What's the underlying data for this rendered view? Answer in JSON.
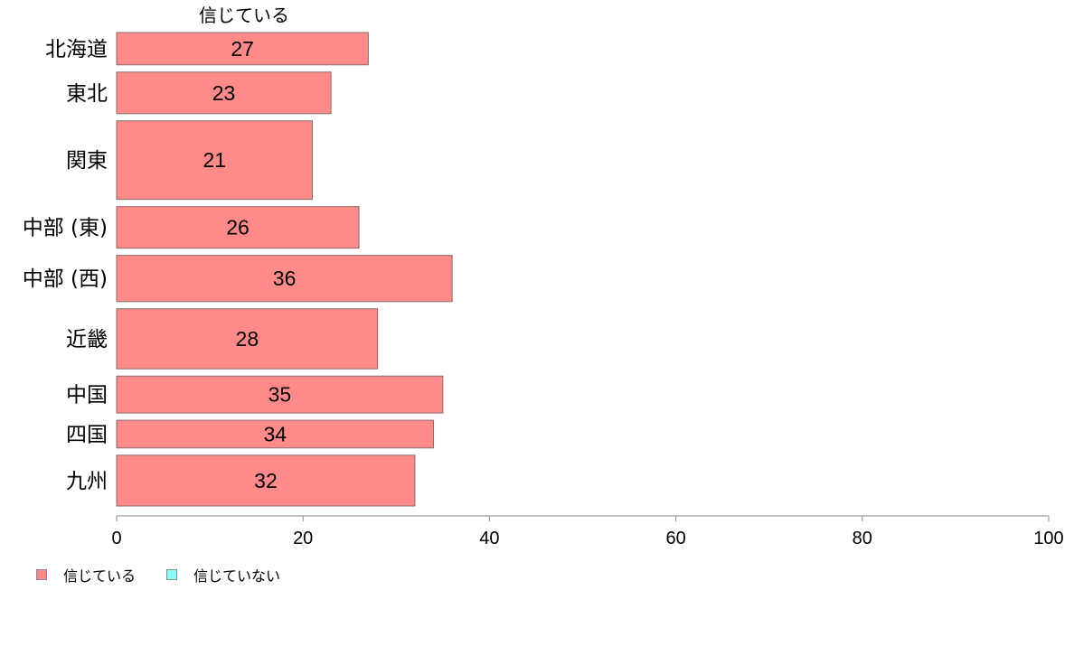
{
  "chart_data": {
    "type": "bar",
    "orientation": "horizontal",
    "panel_title": "信じている",
    "categories": [
      "北海道",
      "東北",
      "関東",
      "中部 (東)",
      "中部 (西)",
      "近畿",
      "中国",
      "四国",
      "九州"
    ],
    "relative_bar_widths": [
      3.5,
      4.5,
      8.5,
      4.5,
      5.0,
      6.5,
      4.0,
      3.0,
      5.5
    ],
    "series": [
      {
        "name": "信じている",
        "color": "#ff8a8a",
        "values": [
          27,
          23,
          21,
          26,
          36,
          28,
          35,
          34,
          32
        ]
      }
    ],
    "xlim": [
      0,
      100
    ],
    "xticks": [
      "0",
      "20",
      "40",
      "60",
      "80",
      "100"
    ],
    "grid": false,
    "legend_position": "bottom-left"
  },
  "legend": [
    {
      "label": "信じている",
      "color": "#ff8a8a"
    },
    {
      "label": "信じていない",
      "color": "#8affff"
    }
  ]
}
